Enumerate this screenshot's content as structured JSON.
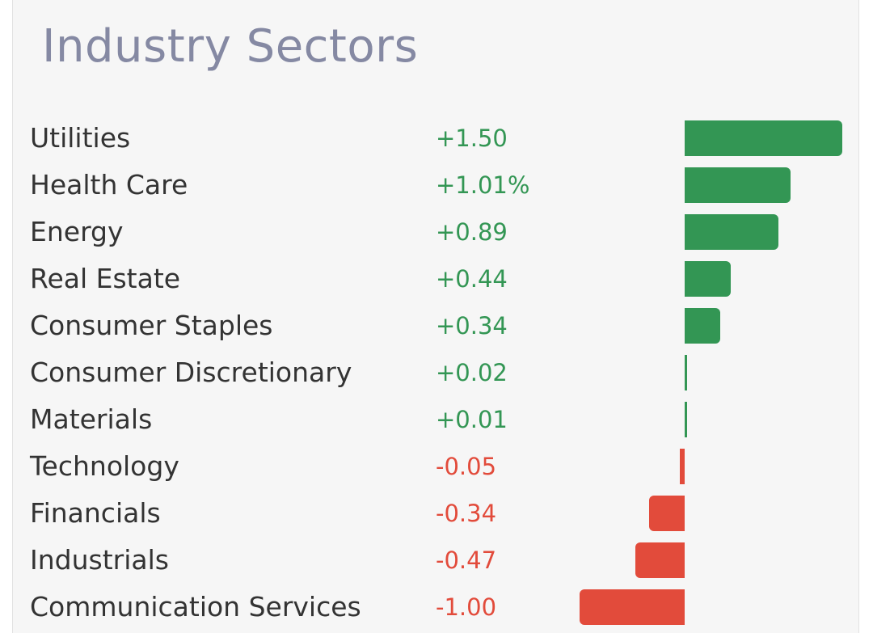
{
  "title": "Industry Sectors",
  "colors": {
    "positive": "#339654",
    "negative": "#e24b3b",
    "title": "#8589a3",
    "label": "#333333",
    "card": "#f6f6f6"
  },
  "rows": [
    {
      "label": "Utilities",
      "value_text": "+1.50"
    },
    {
      "label": "Health Care",
      "value_text": "+1.01%"
    },
    {
      "label": "Energy",
      "value_text": "+0.89"
    },
    {
      "label": "Real Estate",
      "value_text": "+0.44"
    },
    {
      "label": "Consumer Staples",
      "value_text": "+0.34"
    },
    {
      "label": "Consumer Discretionary",
      "value_text": "+0.02"
    },
    {
      "label": "Materials",
      "value_text": "+0.01"
    },
    {
      "label": "Technology",
      "value_text": "-0.05"
    },
    {
      "label": "Financials",
      "value_text": "-0.34"
    },
    {
      "label": "Industrials",
      "value_text": "-0.47"
    },
    {
      "label": "Communication Services",
      "value_text": "-1.00"
    }
  ],
  "chart_data": {
    "type": "bar",
    "orientation": "horizontal",
    "title": "Industry Sectors",
    "categories": [
      "Utilities",
      "Health Care",
      "Energy",
      "Real Estate",
      "Consumer Staples",
      "Consumer Discretionary",
      "Materials",
      "Technology",
      "Financials",
      "Industrials",
      "Communication Services"
    ],
    "values": [
      1.5,
      1.01,
      0.89,
      0.44,
      0.34,
      0.02,
      0.01,
      -0.05,
      -0.34,
      -0.47,
      -1.0
    ],
    "xlim": [
      -1.0,
      1.5
    ],
    "grid": false,
    "legend": "none"
  }
}
